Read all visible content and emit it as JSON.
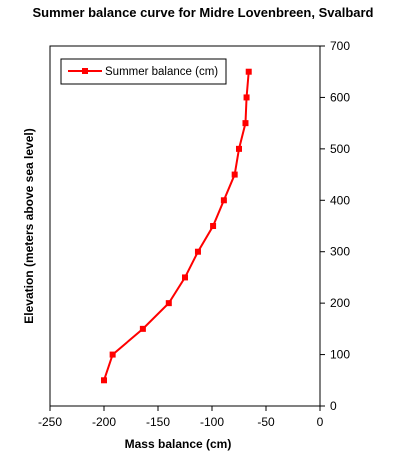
{
  "chart_data": {
    "type": "line",
    "title": "Summer  balance curve for Midre Lovenbreen, Svalbard",
    "xlabel": "Mass balance (cm)",
    "ylabel": "Elevation (meters above sea level)",
    "xlim": [
      -250,
      0
    ],
    "ylim": [
      0,
      700
    ],
    "xticks": [
      -250,
      -200,
      -150,
      -100,
      -50,
      0
    ],
    "yticks": [
      0,
      100,
      200,
      300,
      400,
      500,
      600,
      700
    ],
    "y_axis_side": "right",
    "legend_position": "top-left",
    "grid": false,
    "series": [
      {
        "name": "Summer balance (cm)",
        "color": "#ff0000",
        "marker": "square",
        "x": [
          -200,
          -192,
          -164,
          -140,
          -125,
          -113,
          -99,
          -89,
          -79,
          -75,
          -69,
          -68,
          -66
        ],
        "y": [
          50,
          100,
          150,
          200,
          250,
          300,
          350,
          400,
          450,
          500,
          550,
          600,
          650
        ]
      }
    ]
  }
}
